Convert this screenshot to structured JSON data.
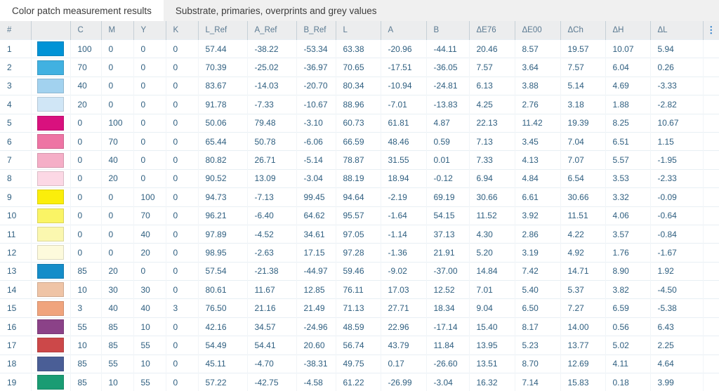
{
  "tabs": [
    {
      "label": "Color patch measurement results",
      "active": true
    },
    {
      "label": "Substrate, primaries, overprints and grey values",
      "active": false
    }
  ],
  "header": {
    "columns": [
      "#",
      "",
      "C",
      "M",
      "Y",
      "K",
      "L_Ref",
      "A_Ref",
      "B_Ref",
      "L",
      "A",
      "B",
      "ΔE76",
      "ΔE00",
      "ΔCh",
      "ΔH",
      "ΔL"
    ],
    "menu_icon": "⋮"
  },
  "colors": {
    "accent_blue": "#1a73c8",
    "header_text": "#5b7a92",
    "cell_text": "#2f5f80",
    "header_bg": "#ecedee",
    "tab_strip_bg": "#f0f0f0"
  },
  "rows": [
    {
      "num": "1",
      "swatch": "#0093d6",
      "values": [
        "100",
        "0",
        "0",
        "0",
        "57.44",
        "-38.22",
        "-53.34",
        "63.38",
        "-20.96",
        "-44.11",
        "20.46",
        "8.57",
        "19.57",
        "10.07",
        "5.94"
      ]
    },
    {
      "num": "2",
      "swatch": "#41b1e1",
      "values": [
        "70",
        "0",
        "0",
        "0",
        "70.39",
        "-25.02",
        "-36.97",
        "70.65",
        "-17.51",
        "-36.05",
        "7.57",
        "3.64",
        "7.57",
        "6.04",
        "0.26"
      ]
    },
    {
      "num": "3",
      "swatch": "#a2d2ef",
      "values": [
        "40",
        "0",
        "0",
        "0",
        "83.67",
        "-14.03",
        "-20.70",
        "80.34",
        "-10.94",
        "-24.81",
        "6.13",
        "3.88",
        "5.14",
        "4.69",
        "-3.33"
      ]
    },
    {
      "num": "4",
      "swatch": "#d0e6f6",
      "values": [
        "20",
        "0",
        "0",
        "0",
        "91.78",
        "-7.33",
        "-10.67",
        "88.96",
        "-7.01",
        "-13.83",
        "4.25",
        "2.76",
        "3.18",
        "1.88",
        "-2.82"
      ]
    },
    {
      "num": "5",
      "swatch": "#d9117e",
      "values": [
        "0",
        "100",
        "0",
        "0",
        "50.06",
        "79.48",
        "-3.10",
        "60.73",
        "61.81",
        "4.87",
        "22.13",
        "11.42",
        "19.39",
        "8.25",
        "10.67"
      ]
    },
    {
      "num": "6",
      "swatch": "#ee74a4",
      "values": [
        "0",
        "70",
        "0",
        "0",
        "65.44",
        "50.78",
        "-6.06",
        "66.59",
        "48.46",
        "0.59",
        "7.13",
        "3.45",
        "7.04",
        "6.51",
        "1.15"
      ]
    },
    {
      "num": "7",
      "swatch": "#f5aec7",
      "values": [
        "0",
        "40",
        "0",
        "0",
        "80.82",
        "26.71",
        "-5.14",
        "78.87",
        "31.55",
        "0.01",
        "7.33",
        "4.13",
        "7.07",
        "5.57",
        "-1.95"
      ]
    },
    {
      "num": "8",
      "swatch": "#fcd8e5",
      "values": [
        "0",
        "20",
        "0",
        "0",
        "90.52",
        "13.09",
        "-3.04",
        "88.19",
        "18.94",
        "-0.12",
        "6.94",
        "4.84",
        "6.54",
        "3.53",
        "-2.33"
      ]
    },
    {
      "num": "9",
      "swatch": "#fbee0b",
      "values": [
        "0",
        "0",
        "100",
        "0",
        "94.73",
        "-7.13",
        "99.45",
        "94.64",
        "-2.19",
        "69.19",
        "30.66",
        "6.61",
        "30.66",
        "3.32",
        "-0.09"
      ]
    },
    {
      "num": "10",
      "swatch": "#faf465",
      "values": [
        "0",
        "0",
        "70",
        "0",
        "96.21",
        "-6.40",
        "64.62",
        "95.57",
        "-1.64",
        "54.15",
        "11.52",
        "3.92",
        "11.51",
        "4.06",
        "-0.64"
      ]
    },
    {
      "num": "11",
      "swatch": "#fbf7af",
      "values": [
        "0",
        "0",
        "40",
        "0",
        "97.89",
        "-4.52",
        "34.61",
        "97.05",
        "-1.14",
        "37.13",
        "4.30",
        "2.86",
        "4.22",
        "3.57",
        "-0.84"
      ]
    },
    {
      "num": "12",
      "swatch": "#fdfadc",
      "values": [
        "0",
        "0",
        "20",
        "0",
        "98.95",
        "-2.63",
        "17.15",
        "97.28",
        "-1.36",
        "21.91",
        "5.20",
        "3.19",
        "4.92",
        "1.76",
        "-1.67"
      ]
    },
    {
      "num": "13",
      "swatch": "#158dc9",
      "values": [
        "85",
        "20",
        "0",
        "0",
        "57.54",
        "-21.38",
        "-44.97",
        "59.46",
        "-9.02",
        "-37.00",
        "14.84",
        "7.42",
        "14.71",
        "8.90",
        "1.92"
      ]
    },
    {
      "num": "14",
      "swatch": "#efc4a6",
      "values": [
        "10",
        "30",
        "30",
        "0",
        "80.61",
        "11.67",
        "12.85",
        "76.11",
        "17.03",
        "12.52",
        "7.01",
        "5.40",
        "5.37",
        "3.82",
        "-4.50"
      ]
    },
    {
      "num": "15",
      "swatch": "#f0a47d",
      "values": [
        "3",
        "40",
        "40",
        "3",
        "76.50",
        "21.16",
        "21.49",
        "71.13",
        "27.71",
        "18.34",
        "9.04",
        "6.50",
        "7.27",
        "6.59",
        "-5.38"
      ]
    },
    {
      "num": "16",
      "swatch": "#8b4288",
      "values": [
        "55",
        "85",
        "10",
        "0",
        "42.16",
        "34.57",
        "-24.96",
        "48.59",
        "22.96",
        "-17.14",
        "15.40",
        "8.17",
        "14.00",
        "0.56",
        "6.43"
      ]
    },
    {
      "num": "17",
      "swatch": "#cc4849",
      "values": [
        "10",
        "85",
        "55",
        "0",
        "54.49",
        "54.41",
        "20.60",
        "56.74",
        "43.79",
        "11.84",
        "13.95",
        "5.23",
        "13.77",
        "5.02",
        "2.25"
      ]
    },
    {
      "num": "18",
      "swatch": "#4a5e96",
      "values": [
        "85",
        "55",
        "10",
        "0",
        "45.11",
        "-4.70",
        "-38.31",
        "49.75",
        "0.17",
        "-26.60",
        "13.51",
        "8.70",
        "12.69",
        "4.11",
        "4.64"
      ]
    },
    {
      "num": "19",
      "swatch": "#1a9c73",
      "values": [
        "85",
        "10",
        "55",
        "0",
        "57.22",
        "-42.75",
        "-4.58",
        "61.22",
        "-26.99",
        "-3.04",
        "16.32",
        "7.14",
        "15.83",
        "0.18",
        "3.99"
      ]
    }
  ]
}
